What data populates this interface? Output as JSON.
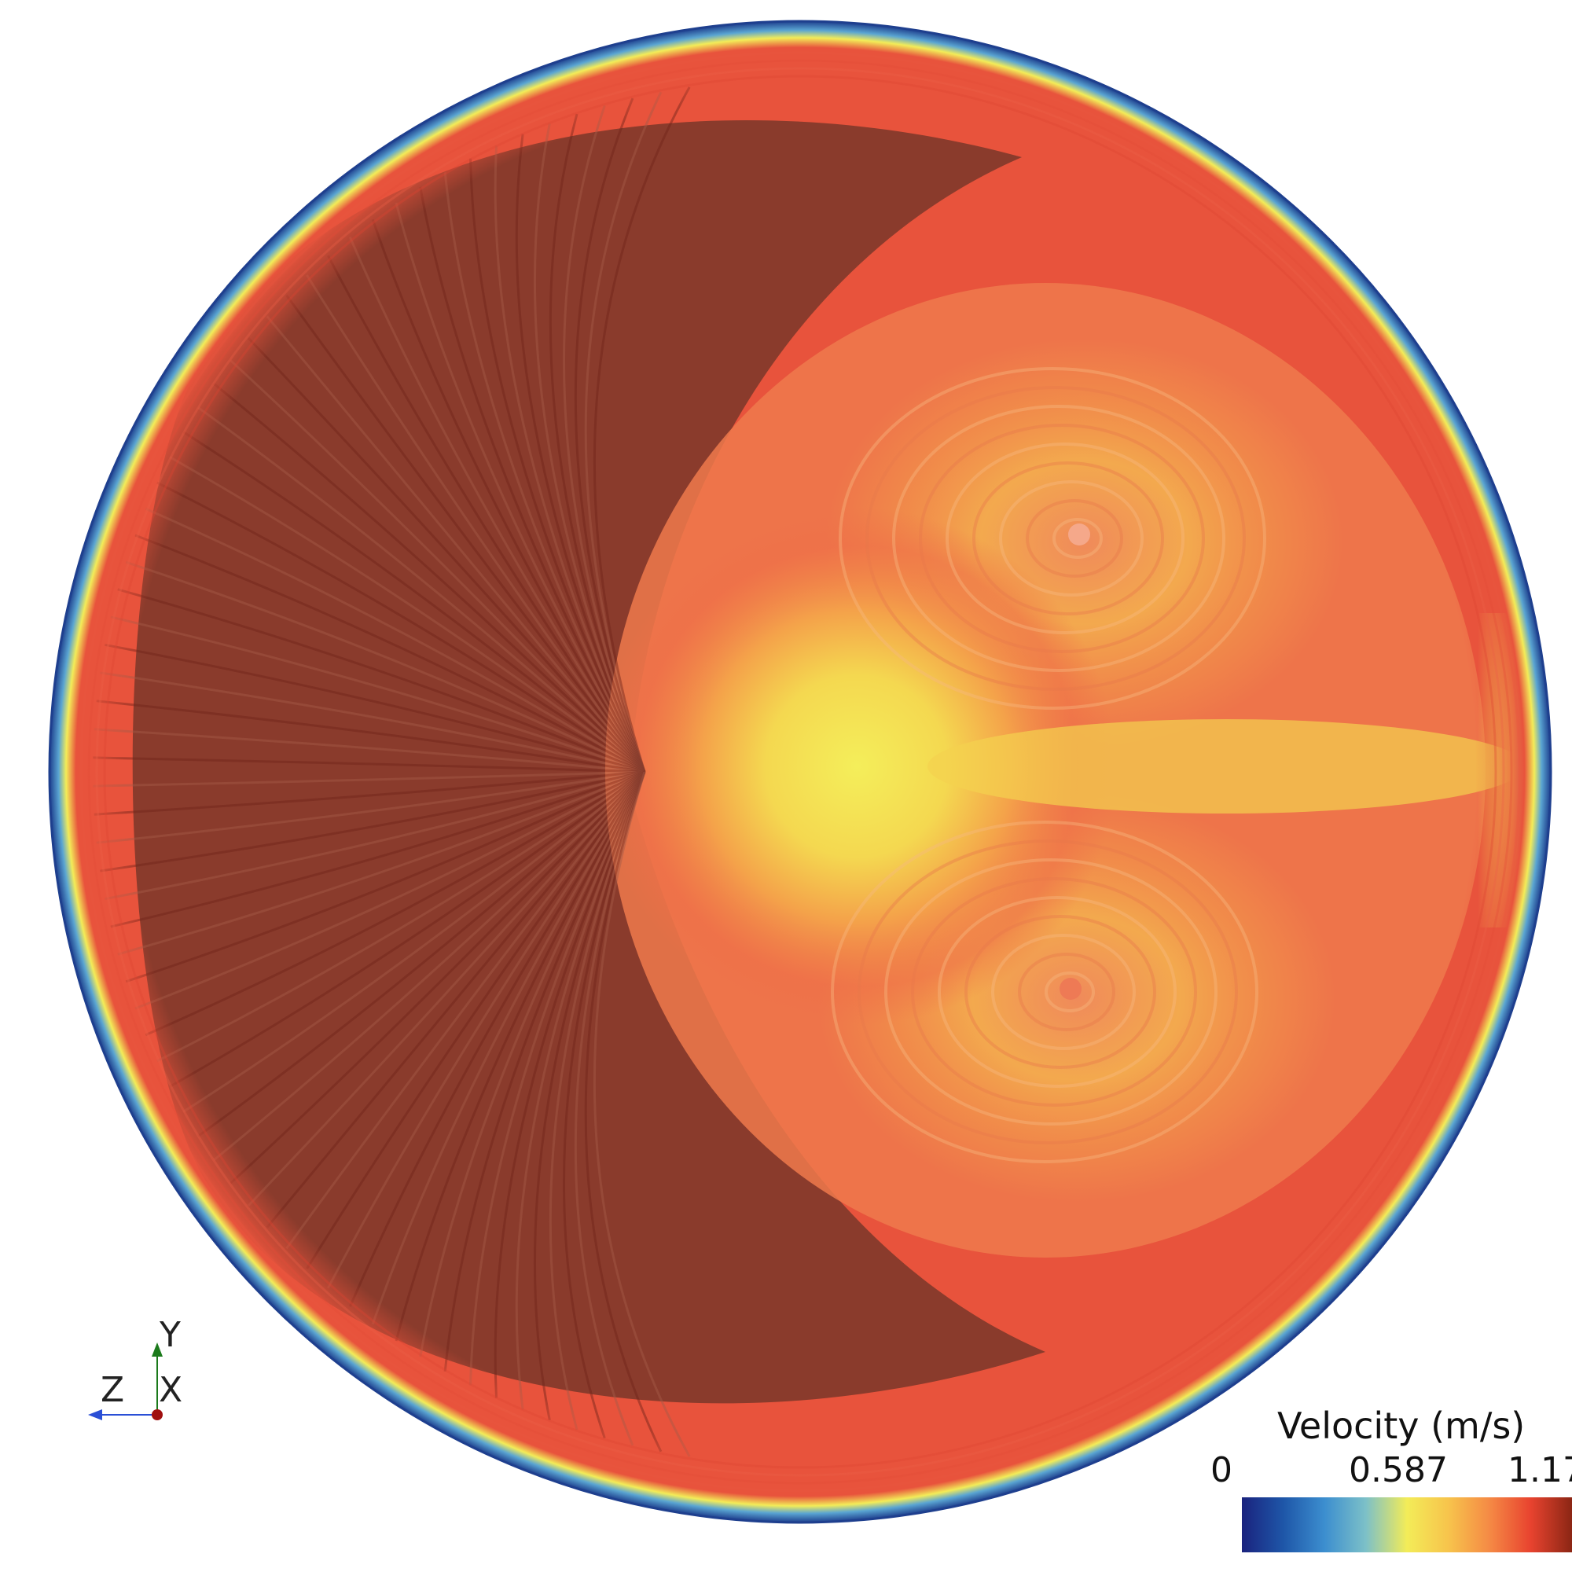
{
  "visualization": {
    "quantity": "Velocity",
    "colormap": "blue-yellow-red (turbo-like)",
    "legend": {
      "title": "Velocity (m/s)",
      "ticks": [
        "0",
        "0.587",
        "1.17"
      ],
      "min": 0,
      "mid": 0.587,
      "max": 1.17,
      "colors": [
        "#1a237e",
        "#1e56a8",
        "#3c8ecf",
        "#7cc0c8",
        "#f3ec58",
        "#f7c44c",
        "#f58a45",
        "#e8432f",
        "#8b2614"
      ]
    },
    "orientation_axes": {
      "up": "Y",
      "left": "Z",
      "out": "X",
      "colors": {
        "y": "#1b7a1b",
        "z": "#2a4fd6",
        "x": "#a01010"
      }
    }
  }
}
